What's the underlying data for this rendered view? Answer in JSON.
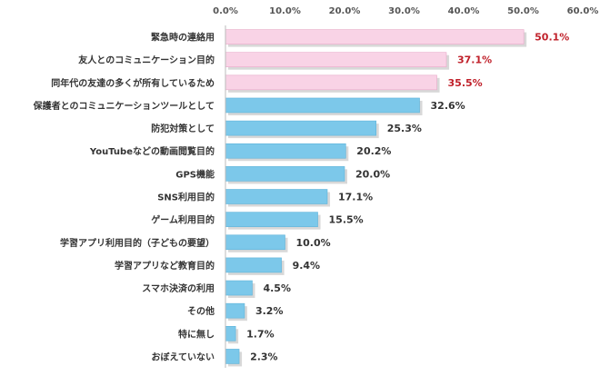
{
  "chart_data": {
    "type": "bar",
    "orientation": "horizontal",
    "title": "",
    "xlabel": "",
    "ylabel": "",
    "xlim": [
      0,
      60
    ],
    "ticks": [
      0,
      10,
      20,
      30,
      40,
      50,
      60
    ],
    "tick_labels": [
      "0.0%",
      "10.0%",
      "20.0%",
      "30.0%",
      "40.0%",
      "50.0%",
      "60.0%"
    ],
    "grid": false,
    "categories": [
      "緊急時の連絡用",
      "友人とのコミュニケーション目的",
      "同年代の友達の多くが所有しているため",
      "保護者とのコミュニケーションツールとして",
      "防犯対策として",
      "YouTubeなどの動画閲覧目的",
      "GPS機能",
      "SNS利用目的",
      "ゲーム利用目的",
      "学習アプリ利用目的（子どもの要望）",
      "学習アプリなど教育目的",
      "スマホ決済の利用",
      "その他",
      "特に無し",
      "おぼえていない"
    ],
    "values": [
      50.1,
      37.1,
      35.5,
      32.6,
      25.3,
      20.2,
      20.0,
      17.1,
      15.5,
      10.0,
      9.4,
      4.5,
      3.2,
      1.7,
      2.3
    ],
    "value_labels": [
      "50.1%",
      "37.1%",
      "35.5%",
      "32.6%",
      "25.3%",
      "20.2%",
      "20.0%",
      "17.1%",
      "15.5%",
      "10.0%",
      "9.4%",
      "4.5%",
      "3.2%",
      "1.7%",
      "2.3%"
    ],
    "highlight_count": 3,
    "colors": {
      "highlight_bar": "#f9d3e6",
      "highlight_bar_border": "#e8a8c8",
      "normal_bar": "#7cc8ea",
      "normal_bar_border": "#5eb3d9",
      "highlight_text": "#c0202a",
      "normal_text": "#333333",
      "axis": "#bbbbbb",
      "shadow": "#b8b8b8"
    }
  }
}
